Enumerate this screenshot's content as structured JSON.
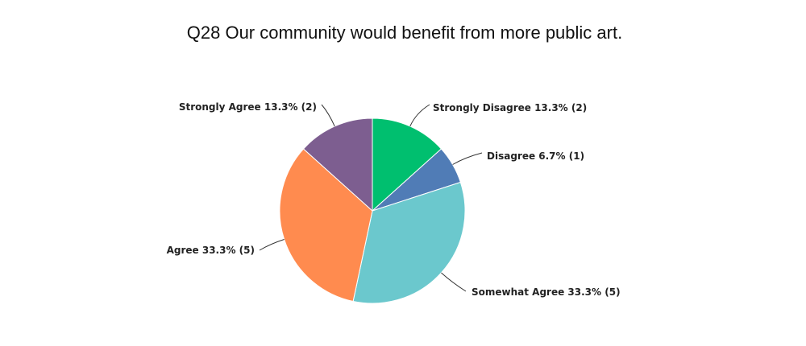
{
  "chart_data": {
    "type": "pie",
    "title": "Q28 Our community would benefit from more public art.",
    "slices": [
      {
        "name": "Strongly Disagree",
        "percent": 13.3,
        "count": 2,
        "color": "#00bf6f",
        "label": "Strongly Disagree 13.3% (2)"
      },
      {
        "name": "Disagree",
        "percent": 6.7,
        "count": 1,
        "color": "#507cb6",
        "label": "Disagree 6.7% (1)"
      },
      {
        "name": "Somewhat Agree",
        "percent": 33.3,
        "count": 5,
        "color": "#6bc8cd",
        "label": "Somewhat Agree 33.3% (5)"
      },
      {
        "name": "Agree",
        "percent": 33.3,
        "count": 5,
        "color": "#ff8b4f",
        "label": "Agree 33.3% (5)"
      },
      {
        "name": "Strongly Agree",
        "percent": 13.3,
        "count": 2,
        "color": "#7d5e90",
        "label": "Strongly Agree 13.3% (2)"
      }
    ],
    "start": "12 o'clock",
    "direction": "clockwise",
    "legend": "none"
  }
}
